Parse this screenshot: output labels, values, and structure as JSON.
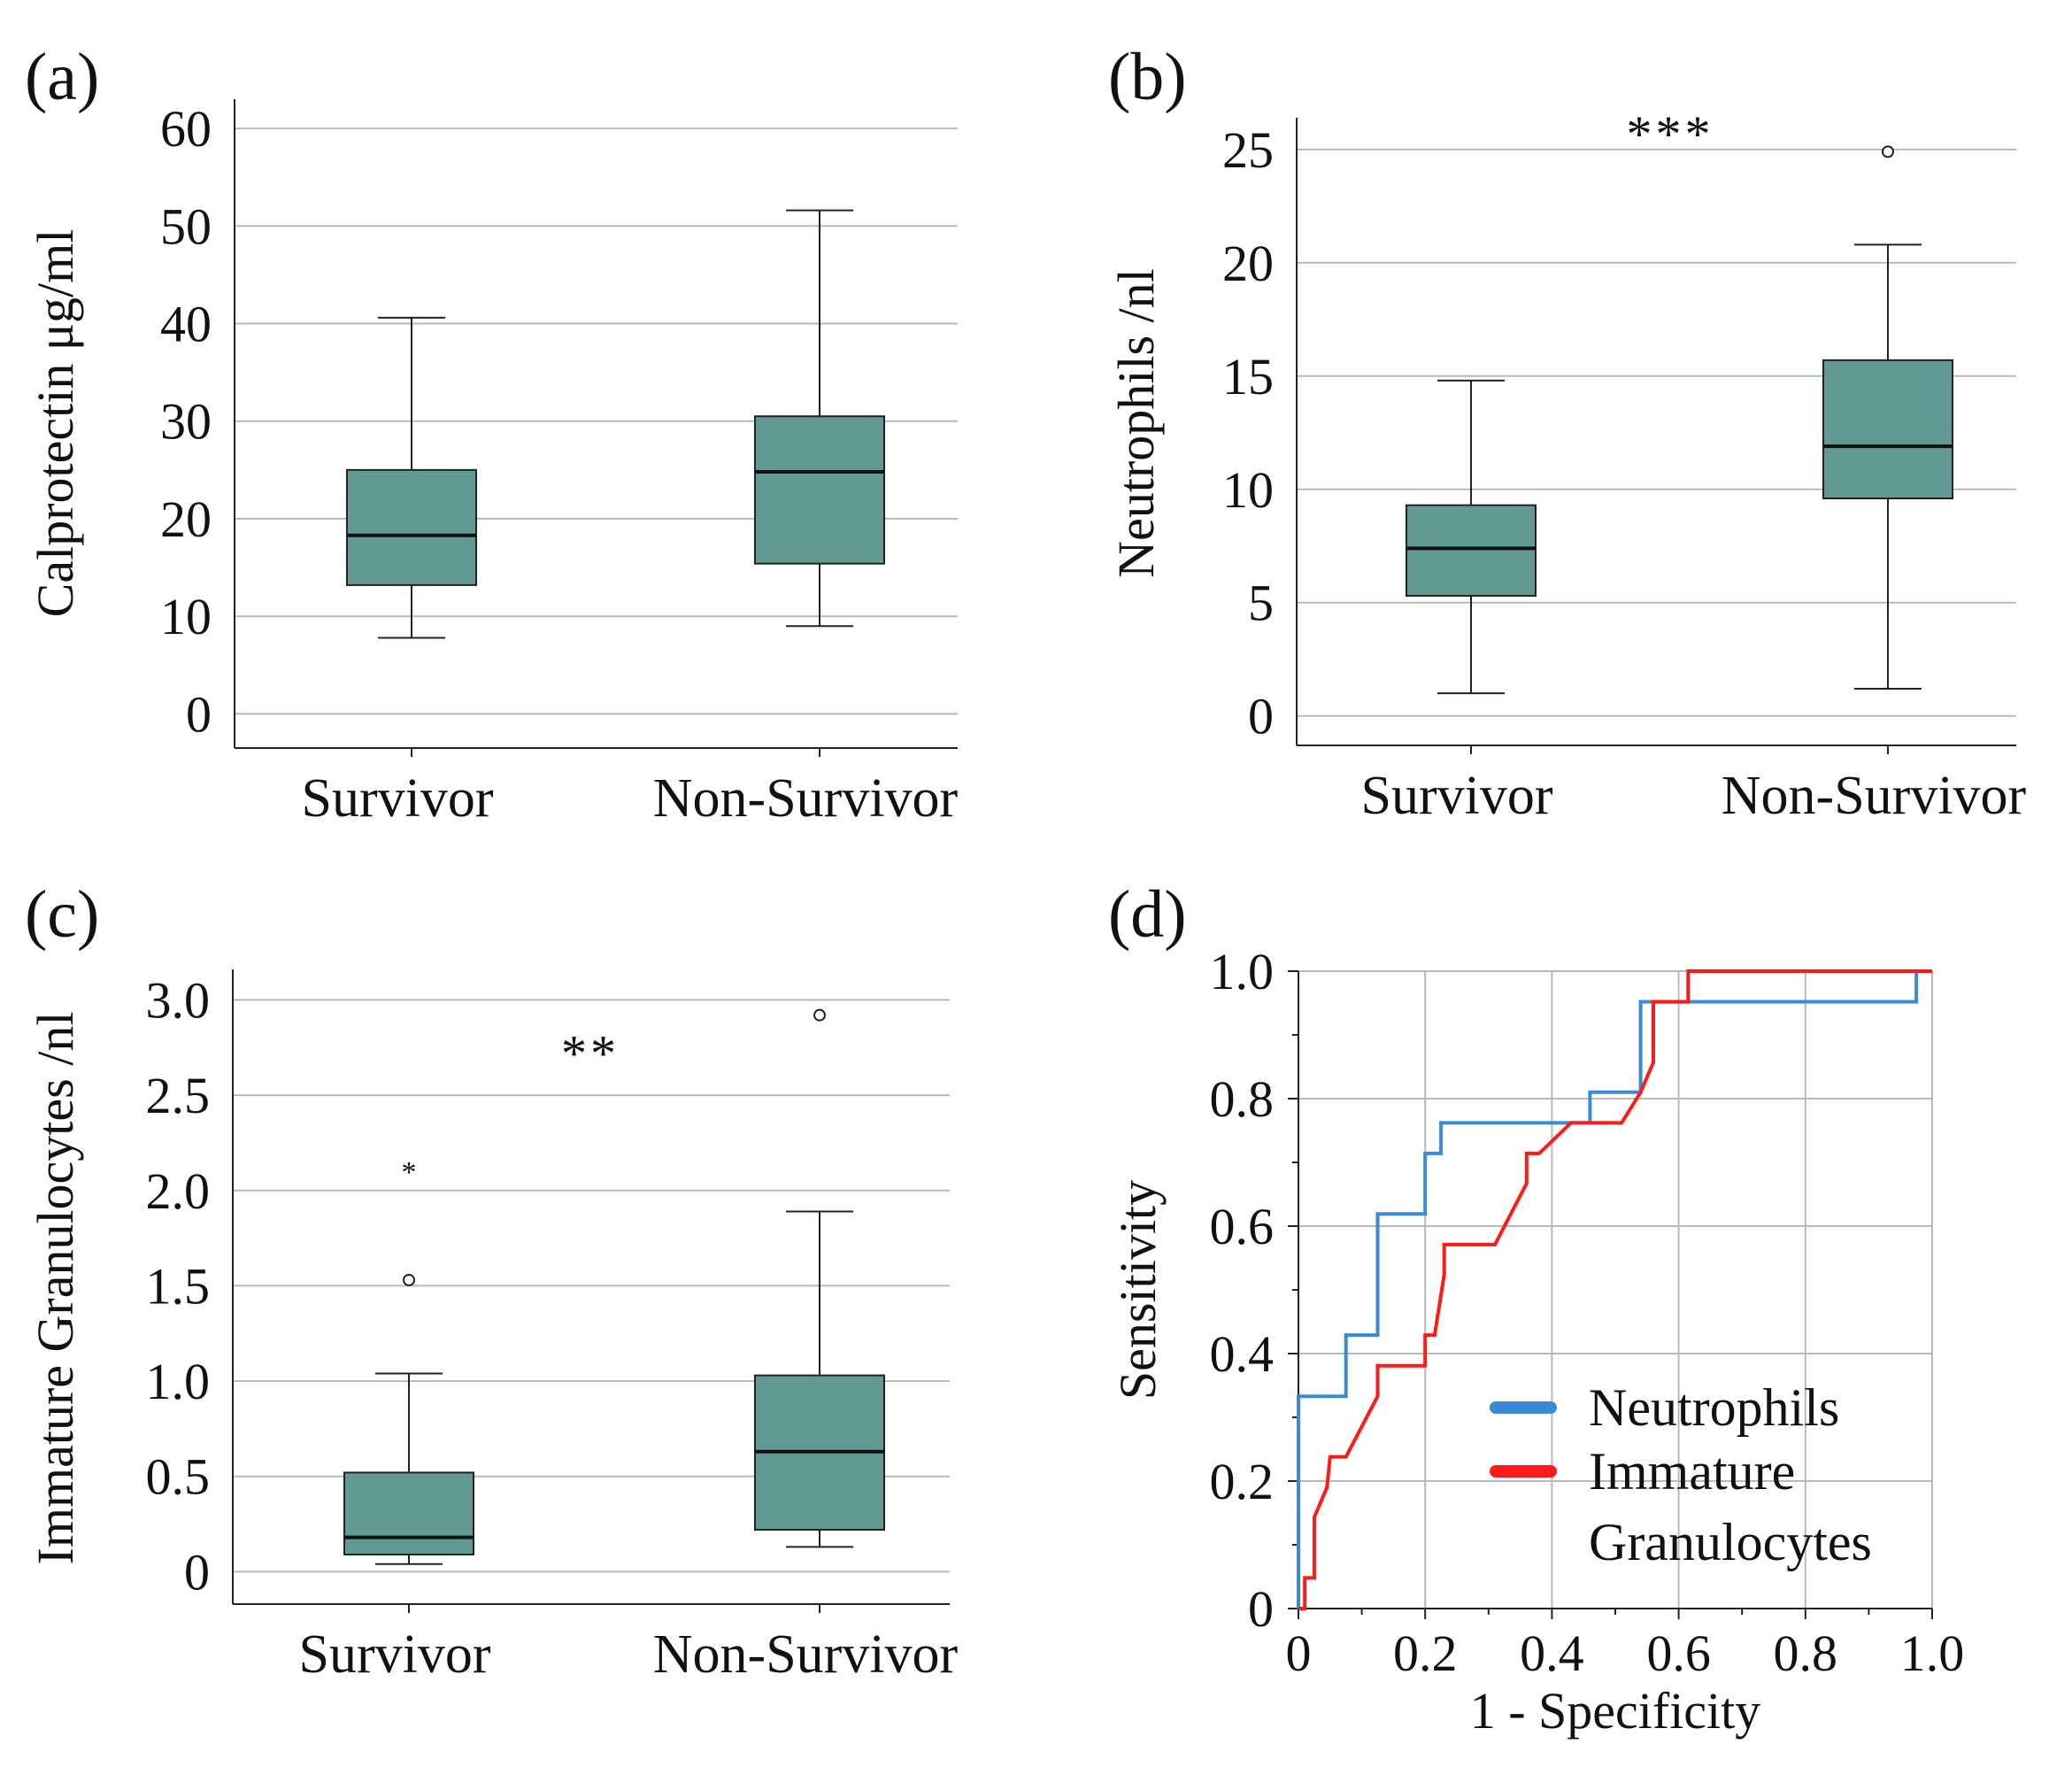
{
  "figure": {
    "panels": [
      {
        "id": "a",
        "label": "(a)"
      },
      {
        "id": "b",
        "label": "(b)"
      },
      {
        "id": "c",
        "label": "(c)"
      },
      {
        "id": "d",
        "label": "(d)"
      }
    ]
  },
  "chart_data": [
    {
      "id": "a",
      "type": "box",
      "panel_label": "(a)",
      "ylabel": "Calprotectin μg/ml",
      "ylim": [
        -3.5,
        63
      ],
      "yticks": [
        0,
        10,
        20,
        30,
        40,
        50,
        60
      ],
      "ytick_labels": [
        "0",
        "10",
        "20",
        "30",
        "40",
        "50",
        "60"
      ],
      "grid": true,
      "categories": [
        "Survivor",
        "Non-Survivor"
      ],
      "box_color": "#629994",
      "boxes": [
        {
          "category": "Survivor",
          "whisker_low": 7.8,
          "q1": 13.2,
          "median": 18.3,
          "q3": 25.0,
          "whisker_high": 40.6,
          "outliers": [],
          "extremes": []
        },
        {
          "category": "Non-Survivor",
          "whisker_low": 9.0,
          "q1": 15.4,
          "median": 24.8,
          "q3": 30.5,
          "whisker_high": 51.6,
          "outliers": [],
          "extremes": []
        }
      ],
      "significance": []
    },
    {
      "id": "b",
      "type": "box",
      "panel_label": "(b)",
      "ylabel": "Neutrophils /nl",
      "ylim": [
        -1.3,
        26.4
      ],
      "yticks": [
        0,
        5,
        10,
        15,
        20,
        25
      ],
      "ytick_labels": [
        "0",
        "5",
        "10",
        "15",
        "20",
        "25"
      ],
      "grid": true,
      "categories": [
        "Survivor",
        "Non-Survivor"
      ],
      "box_color": "#629994",
      "boxes": [
        {
          "category": "Survivor",
          "whisker_low": 1.0,
          "q1": 5.3,
          "median": 7.4,
          "q3": 9.3,
          "whisker_high": 14.8,
          "outliers": [],
          "extremes": []
        },
        {
          "category": "Non-Survivor",
          "whisker_low": 1.2,
          "q1": 9.6,
          "median": 11.9,
          "q3": 15.7,
          "whisker_high": 20.8,
          "outliers": [
            24.9
          ],
          "extremes": []
        }
      ],
      "significance": [
        {
          "text": "***",
          "y": 25.7
        }
      ]
    },
    {
      "id": "c",
      "type": "box",
      "panel_label": "(c)",
      "ylabel": "Immature Granulocytes /nl",
      "ylim": [
        -0.17,
        3.16
      ],
      "yticks": [
        0,
        0.5,
        1.0,
        1.5,
        2.0,
        2.5,
        3.0
      ],
      "ytick_labels": [
        "0",
        "0.5",
        "1.0",
        "1.5",
        "2.0",
        "2.5",
        "3.0"
      ],
      "grid": true,
      "categories": [
        "Survivor",
        "Non-Survivor"
      ],
      "box_color": "#629994",
      "boxes": [
        {
          "category": "Survivor",
          "whisker_low": 0.04,
          "q1": 0.09,
          "median": 0.18,
          "q3": 0.52,
          "whisker_high": 1.04,
          "outliers": [
            1.53
          ],
          "extremes": [
            2.12
          ]
        },
        {
          "category": "Non-Survivor",
          "whisker_low": 0.13,
          "q1": 0.22,
          "median": 0.63,
          "q3": 1.03,
          "whisker_high": 1.89,
          "outliers": [
            2.92
          ],
          "extremes": []
        }
      ],
      "significance": [
        {
          "text": "**",
          "y": 2.72
        }
      ]
    },
    {
      "id": "d",
      "type": "line",
      "panel_label": "(d)",
      "xlabel": "1 - Specificity",
      "ylabel": "Sensitivity",
      "xlim": [
        0,
        1
      ],
      "ylim": [
        0,
        1
      ],
      "xticks": [
        0,
        0.2,
        0.4,
        0.6,
        0.8,
        1.0
      ],
      "xtick_labels": [
        "0",
        "0.2",
        "0.4",
        "0.6",
        "0.8",
        "1.0"
      ],
      "yticks": [
        0,
        0.2,
        0.4,
        0.6,
        0.8,
        1.0
      ],
      "ytick_labels": [
        "0",
        "0.2",
        "0.4",
        "0.6",
        "0.8",
        "1.0"
      ],
      "grid": true,
      "legend_position": "lower-right",
      "series": [
        {
          "name": "Neutrophils",
          "color": "#3a8ad6",
          "x": [
            0,
            0,
            0.075,
            0.075,
            0.125,
            0.125,
            0.2,
            0.2,
            0.225,
            0.225,
            0.46,
            0.46,
            0.54,
            0.54,
            0.975,
            0.975,
            1.0
          ],
          "y": [
            0,
            0.333,
            0.333,
            0.429,
            0.429,
            0.619,
            0.619,
            0.714,
            0.714,
            0.762,
            0.762,
            0.81,
            0.81,
            0.952,
            0.952,
            1.0,
            1.0
          ]
        },
        {
          "name": "Immature Granulocytes",
          "color": "#ff1a1a",
          "x": [
            0,
            0.01,
            0.01,
            0.025,
            0.025,
            0.045,
            0.05,
            0.075,
            0.125,
            0.125,
            0.2,
            0.2,
            0.215,
            0.23,
            0.23,
            0.31,
            0.36,
            0.36,
            0.38,
            0.43,
            0.43,
            0.51,
            0.54,
            0.56,
            0.56,
            0.615,
            0.615,
            1.0
          ],
          "y": [
            0,
            0,
            0.048,
            0.048,
            0.143,
            0.19,
            0.238,
            0.238,
            0.333,
            0.381,
            0.381,
            0.429,
            0.429,
            0.524,
            0.571,
            0.571,
            0.667,
            0.714,
            0.714,
            0.762,
            0.762,
            0.762,
            0.81,
            0.857,
            0.952,
            0.952,
            1.0,
            1.0
          ]
        }
      ],
      "legend": [
        {
          "name": "Neutrophils",
          "lines": [
            "Neutrophils"
          ],
          "color": "#3a8ad6"
        },
        {
          "name": "Immature Granulocytes",
          "lines": [
            "Immature",
            "Granulocytes"
          ],
          "color": "#ff1a1a"
        }
      ]
    }
  ]
}
